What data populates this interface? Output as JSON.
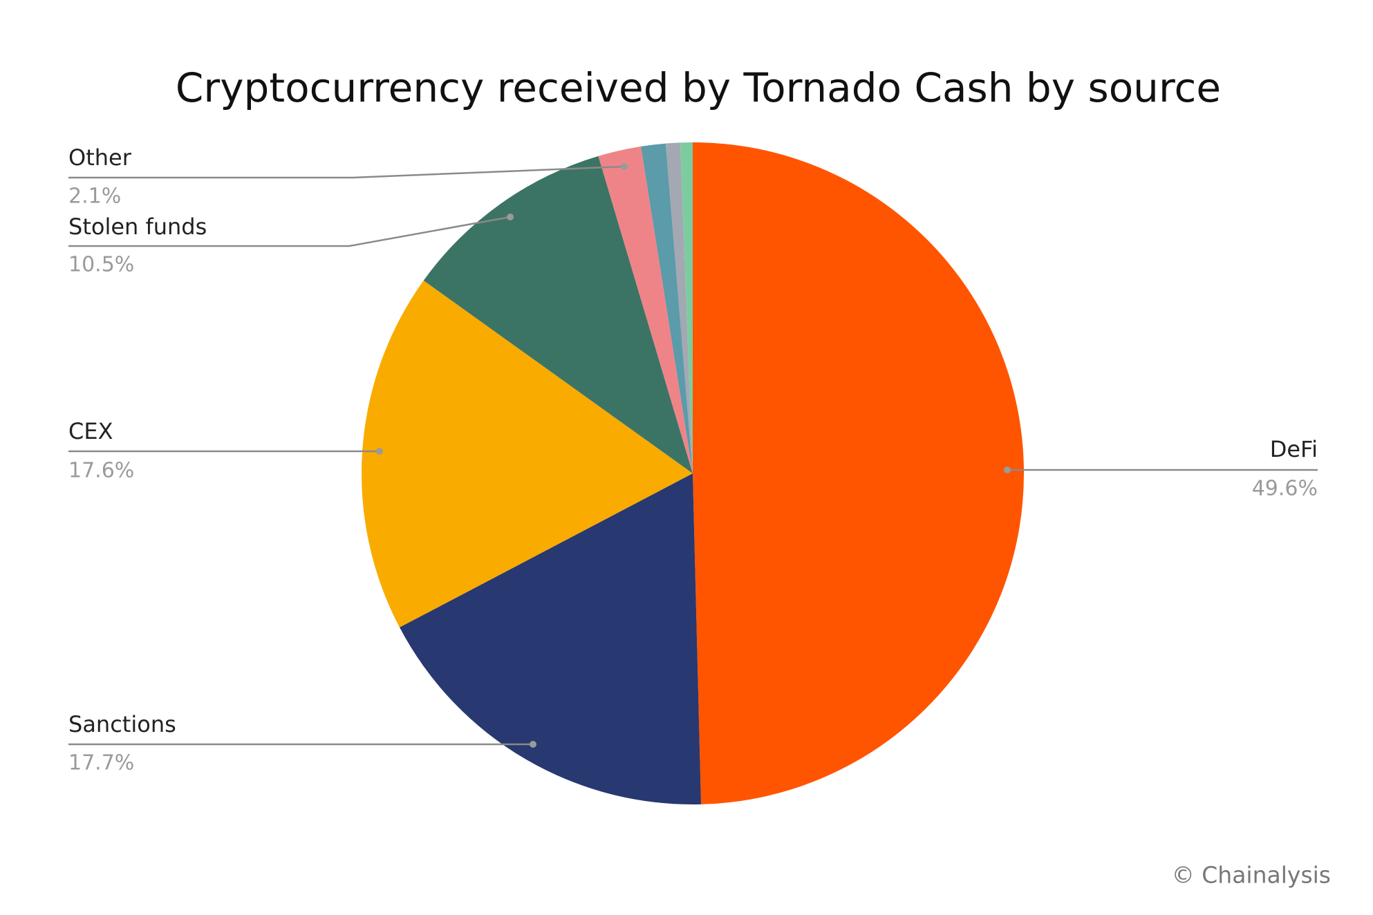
{
  "chart_data": {
    "type": "pie",
    "title": "Cryptocurrency received by Tornado Cash by source",
    "categories": [
      "DeFi",
      "Sanctions",
      "CEX",
      "Stolen funds",
      "Other",
      null,
      null,
      null
    ],
    "values": [
      49.6,
      17.7,
      17.6,
      10.5,
      2.1,
      1.2,
      0.7,
      0.6
    ],
    "value_labels": [
      "49.6%",
      "17.7%",
      "17.6%",
      "10.5%",
      "2.1%",
      null,
      null,
      null
    ],
    "colors": [
      "#ff5500",
      "#283870",
      "#f9ab00",
      "#3b7465",
      "#ef8488",
      "#5b9baa",
      "#a3a8b2",
      "#7dcca0"
    ],
    "source": "© Chainalysis"
  }
}
